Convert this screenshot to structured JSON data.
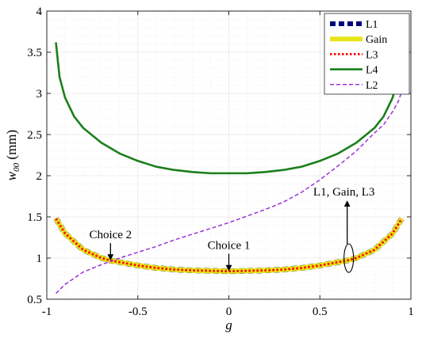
{
  "chart_data": {
    "type": "line",
    "xlabel": "g",
    "ylabel_main": "w",
    "ylabel_sub": "00",
    "ylabel_unit": " (mm)",
    "xlim": [
      -1,
      1
    ],
    "ylim": [
      0.5,
      4
    ],
    "x_ticks": [
      -1,
      -0.5,
      0,
      0.5,
      1
    ],
    "x_tick_labels": [
      "-1",
      "-0.5",
      "0",
      "0.5",
      "1"
    ],
    "y_ticks": [
      0.5,
      1,
      1.5,
      2,
      2.5,
      3,
      3.5,
      4
    ],
    "y_tick_labels": [
      "0.5",
      "1",
      "1.5",
      "2",
      "2.5",
      "3",
      "3.5",
      "4"
    ],
    "grid": true,
    "minor_grid": true,
    "legend_position": "top-right",
    "series": [
      {
        "name": "L1",
        "color": "#00007f",
        "style": "dashed-thick",
        "x": [
          -0.95,
          -0.9,
          -0.8,
          -0.7,
          -0.65,
          -0.6,
          -0.5,
          -0.4,
          -0.3,
          -0.2,
          -0.1,
          0,
          0.1,
          0.2,
          0.3,
          0.4,
          0.5,
          0.6,
          0.65,
          0.7,
          0.8,
          0.9,
          0.95
        ],
        "y": [
          1.48,
          1.3,
          1.1,
          1.0,
          0.97,
          0.95,
          0.91,
          0.88,
          0.86,
          0.85,
          0.845,
          0.84,
          0.845,
          0.85,
          0.86,
          0.88,
          0.91,
          0.95,
          0.97,
          1.0,
          1.1,
          1.3,
          1.48
        ]
      },
      {
        "name": "Gain",
        "color": "#e6e619",
        "style": "solid-thick",
        "x": [
          -0.95,
          -0.9,
          -0.8,
          -0.7,
          -0.65,
          -0.6,
          -0.5,
          -0.4,
          -0.3,
          -0.2,
          -0.1,
          0,
          0.1,
          0.2,
          0.3,
          0.4,
          0.5,
          0.6,
          0.65,
          0.7,
          0.8,
          0.9,
          0.95
        ],
        "y": [
          1.48,
          1.3,
          1.1,
          1.0,
          0.97,
          0.95,
          0.91,
          0.88,
          0.86,
          0.85,
          0.845,
          0.84,
          0.845,
          0.85,
          0.86,
          0.88,
          0.91,
          0.95,
          0.97,
          1.0,
          1.1,
          1.3,
          1.48
        ]
      },
      {
        "name": "L3",
        "color": "#ff0000",
        "style": "dotted",
        "x": [
          -0.95,
          -0.9,
          -0.8,
          -0.7,
          -0.65,
          -0.6,
          -0.5,
          -0.4,
          -0.3,
          -0.2,
          -0.1,
          0,
          0.1,
          0.2,
          0.3,
          0.4,
          0.5,
          0.6,
          0.65,
          0.7,
          0.8,
          0.9,
          0.95
        ],
        "y": [
          1.48,
          1.3,
          1.1,
          1.0,
          0.97,
          0.95,
          0.91,
          0.88,
          0.86,
          0.85,
          0.845,
          0.84,
          0.845,
          0.85,
          0.86,
          0.88,
          0.91,
          0.95,
          0.97,
          1.0,
          1.1,
          1.3,
          1.48
        ]
      },
      {
        "name": "L4",
        "color": "#1a7f1a",
        "style": "solid",
        "x": [
          -0.95,
          -0.93,
          -0.9,
          -0.85,
          -0.8,
          -0.7,
          -0.6,
          -0.5,
          -0.4,
          -0.3,
          -0.2,
          -0.1,
          0,
          0.1,
          0.2,
          0.3,
          0.4,
          0.5,
          0.6,
          0.7,
          0.8,
          0.85,
          0.9,
          0.93,
          0.95
        ],
        "y": [
          3.62,
          3.2,
          2.95,
          2.72,
          2.58,
          2.4,
          2.27,
          2.18,
          2.11,
          2.07,
          2.045,
          2.03,
          2.03,
          2.03,
          2.045,
          2.07,
          2.11,
          2.18,
          2.27,
          2.4,
          2.58,
          2.72,
          2.95,
          3.2,
          3.62
        ]
      },
      {
        "name": "L2",
        "color": "#9b30d9",
        "style": "dashed",
        "x": [
          -0.95,
          -0.9,
          -0.8,
          -0.7,
          -0.6,
          -0.5,
          -0.4,
          -0.3,
          -0.2,
          -0.1,
          0,
          0.1,
          0.2,
          0.3,
          0.4,
          0.5,
          0.6,
          0.7,
          0.8,
          0.85,
          0.9,
          0.93,
          0.95
        ],
        "y": [
          0.57,
          0.68,
          0.83,
          0.92,
          1.0,
          1.07,
          1.14,
          1.22,
          1.29,
          1.36,
          1.43,
          1.51,
          1.59,
          1.68,
          1.8,
          1.95,
          2.12,
          2.3,
          2.52,
          2.62,
          2.78,
          2.9,
          3.02
        ]
      }
    ],
    "annotations": [
      {
        "text": "Choice 2",
        "x": -0.65,
        "y": 0.97
      },
      {
        "text": "Choice 1",
        "x": 0.0,
        "y": 0.84
      },
      {
        "text": "L1, Gain, L3",
        "x": 0.65,
        "y": 0.97
      }
    ]
  }
}
